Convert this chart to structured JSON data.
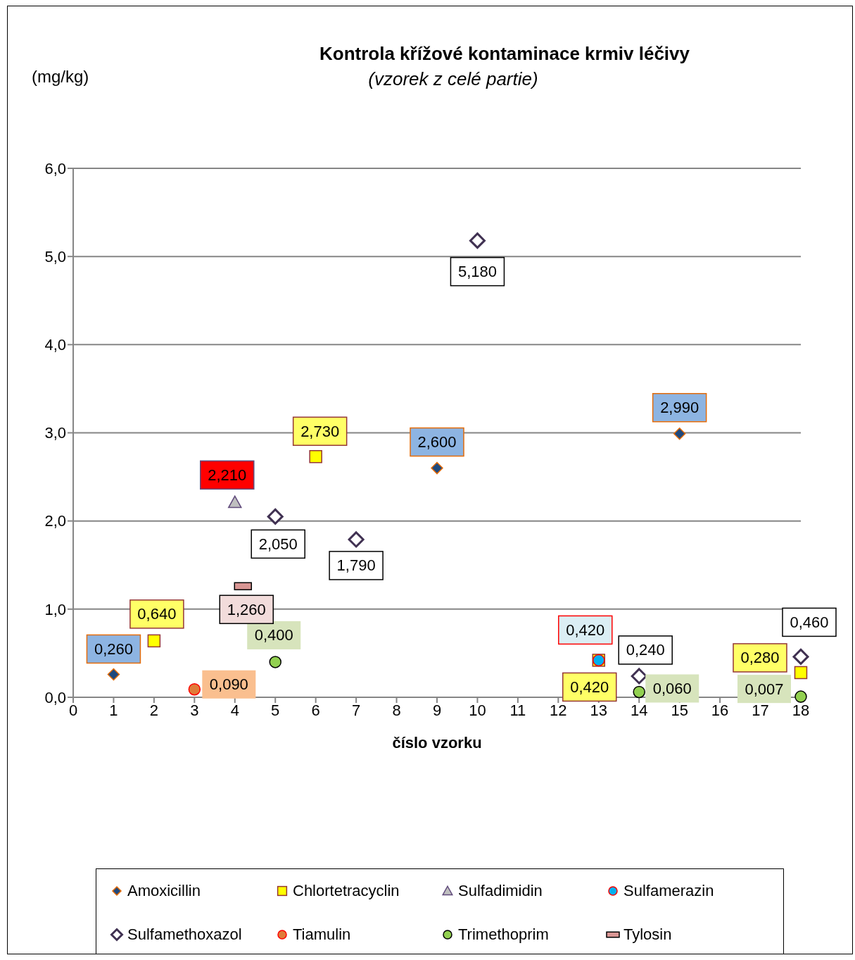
{
  "chart_data": {
    "type": "scatter",
    "title": "Kontrola křížové kontaminace krmiv léčivy",
    "subtitle": "(vzorek z celé partie)",
    "xlabel": "číslo vzorku",
    "ylabel": "(mg/kg)",
    "xlim": [
      0,
      18
    ],
    "xticks": [
      0,
      1,
      2,
      3,
      4,
      5,
      6,
      7,
      8,
      9,
      10,
      11,
      12,
      13,
      14,
      15,
      16,
      17,
      18
    ],
    "ylim": [
      0,
      6
    ],
    "yticks": [
      {
        "value": 0,
        "label": "0,0"
      },
      {
        "value": 1,
        "label": "1,0"
      },
      {
        "value": 2,
        "label": "2,0"
      },
      {
        "value": 3,
        "label": "3,0"
      },
      {
        "value": 4,
        "label": "4,0"
      },
      {
        "value": 5,
        "label": "5,0"
      },
      {
        "value": 6,
        "label": "6,0"
      }
    ],
    "grid": "y",
    "legend": "bottom",
    "series": [
      {
        "name": "Amoxicillin",
        "color": "#1f497d",
        "marker": "diamond",
        "x": [
          1,
          9,
          15
        ],
        "values": [
          0.26,
          2.6,
          2.99
        ],
        "value_labels": [
          "0,260",
          "2,600",
          "2,990"
        ]
      },
      {
        "name": "Chlortetracyclin",
        "color": "#ffff00",
        "marker": "square",
        "x": [
          2,
          6,
          13,
          18
        ],
        "values": [
          0.64,
          2.73,
          0.42,
          0.28
        ],
        "value_labels": [
          "0,640",
          "2,730",
          "0,420",
          "0,280"
        ]
      },
      {
        "name": "Sulfadimidin",
        "color": "#bfbfbf",
        "marker": "triangle",
        "x": [
          4
        ],
        "values": [
          2.21
        ],
        "value_labels": [
          "2,210"
        ]
      },
      {
        "name": "Sulfamerazin",
        "color": "#00b0f0",
        "marker": "circle",
        "x": [
          13
        ],
        "values": [
          0.42
        ],
        "value_labels": [
          "0,420"
        ]
      },
      {
        "name": "Sulfamethoxazol",
        "color": "#403152",
        "marker": "diamond",
        "x": [
          5,
          7,
          10,
          14,
          18
        ],
        "values": [
          2.05,
          1.79,
          5.18,
          0.24,
          0.46
        ],
        "value_labels": [
          "2,050",
          "1,790",
          "5,180",
          "0,240",
          "0,460"
        ]
      },
      {
        "name": "Tiamulin",
        "color": "#e07b39",
        "marker": "circle",
        "x": [
          3
        ],
        "values": [
          0.09
        ],
        "value_labels": [
          "0,090"
        ]
      },
      {
        "name": "Trimethoprim",
        "color": "#92d050",
        "marker": "circle",
        "x": [
          5,
          14,
          18
        ],
        "values": [
          0.4,
          0.06,
          0.007
        ],
        "value_labels": [
          "0,400",
          "0,060",
          "0,007"
        ]
      },
      {
        "name": "Tylosin",
        "color": "#d99694",
        "marker": "square",
        "x": [
          4.2
        ],
        "values": [
          1.26
        ],
        "value_labels": [
          "1,260"
        ]
      }
    ]
  }
}
